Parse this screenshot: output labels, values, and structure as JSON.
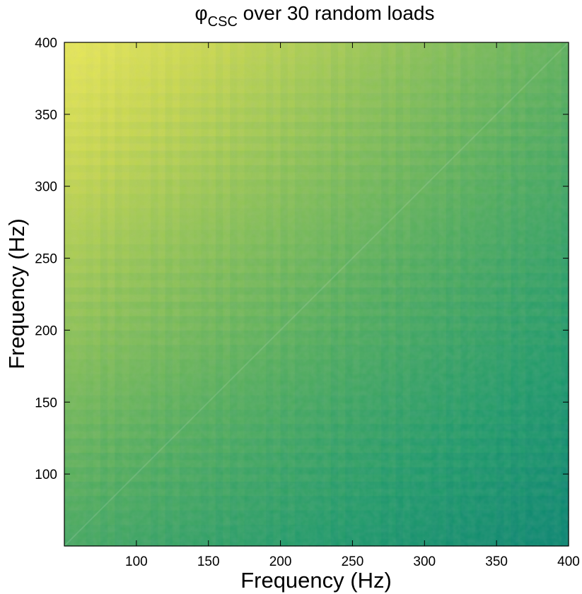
{
  "chart_data": {
    "type": "heatmap",
    "title": {
      "symbol": "φ",
      "subscript": "CSC",
      "rest": " over 30 random loads"
    },
    "xlabel": "Frequency (Hz)",
    "ylabel": "Frequency (Hz)",
    "xlim": [
      50,
      400
    ],
    "ylim": [
      50,
      400
    ],
    "xticks": [
      100,
      150,
      200,
      250,
      300,
      350,
      400
    ],
    "yticks": [
      100,
      150,
      200,
      250,
      300,
      350,
      400
    ],
    "grid": false,
    "colorbar": false,
    "colormap": [
      "#017f73",
      "#1e9a6a",
      "#51ad5d",
      "#8cc255",
      "#c9d84f",
      "#f4ee5a"
    ],
    "value_model": {
      "description_of_gradient": "values decrease from top-left (high) to bottom-right (low)",
      "corner_values": {
        "x50_y400": 0.95,
        "x400_y400": 0.45,
        "x50_y50": 0.35,
        "x400_y50": 0.05
      },
      "diagonal_ridge": true
    }
  }
}
